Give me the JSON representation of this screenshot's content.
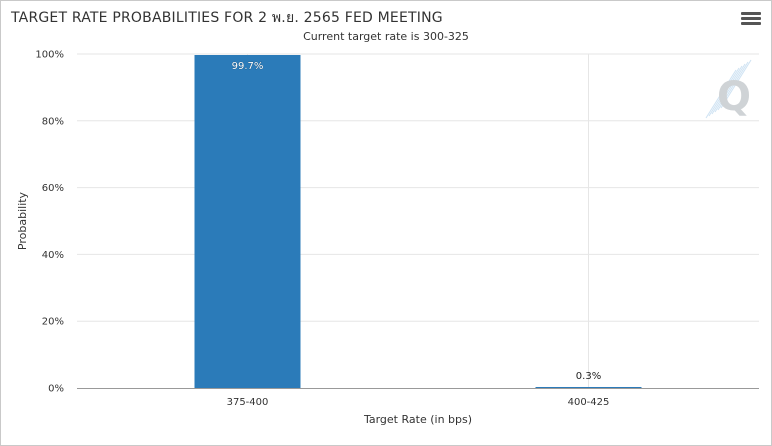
{
  "chart_data": {
    "type": "bar",
    "title": "TARGET RATE PROBABILITIES FOR 2 พ.ย. 2565 FED MEETING",
    "subtitle": "Current target rate is 300-325",
    "categories": [
      "375-400",
      "400-425"
    ],
    "values": [
      99.7,
      0.3
    ],
    "data_labels": [
      "99.7%",
      "0.3%"
    ],
    "xlabel": "Target Rate (in bps)",
    "ylabel": "Probability",
    "ylim": [
      0,
      100
    ],
    "yticks": [
      "0%",
      "20%",
      "40%",
      "60%",
      "80%",
      "100%"
    ],
    "grid": true,
    "legend": "none",
    "bar_color": "#2b7bb9",
    "watermark": "Q"
  },
  "ui": {
    "menu_icon": "hamburger-menu-icon"
  }
}
